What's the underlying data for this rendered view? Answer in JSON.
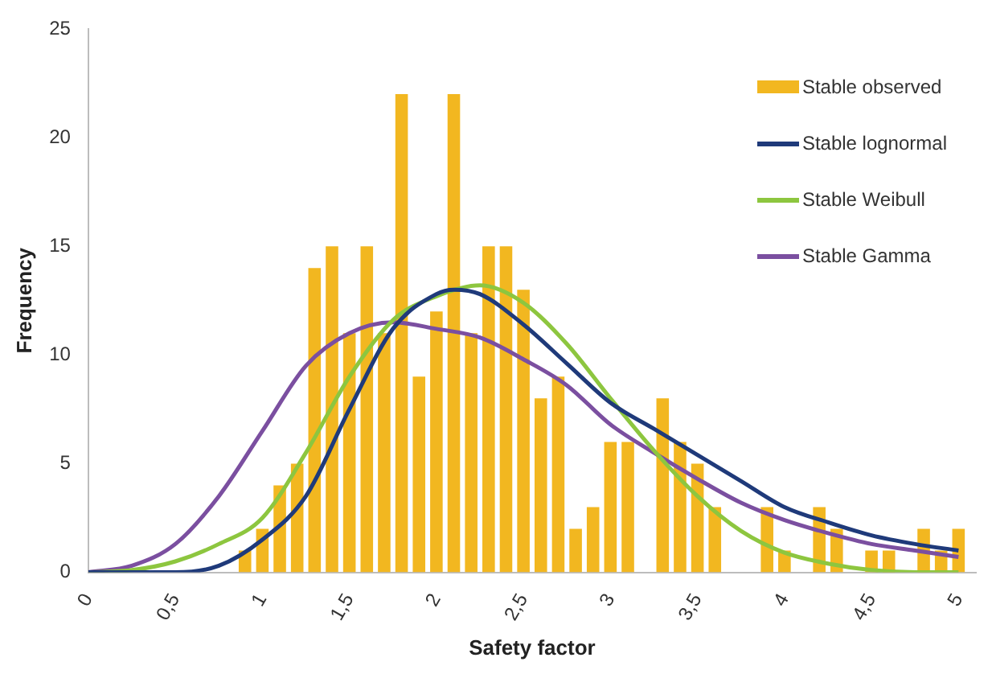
{
  "chart_data": {
    "type": "histogram",
    "xlabel": "Safety factor",
    "ylabel": "Frequency",
    "legend": "top right",
    "grid": false,
    "xlim": [
      0,
      5.1
    ],
    "xticks": [
      0,
      {
        "value": 0.5,
        "label": "0,5"
      },
      1,
      {
        "value": 1.5,
        "label": "1,5"
      },
      2,
      {
        "value": 2.5,
        "label": "2,5"
      },
      3,
      {
        "value": 3.5,
        "label": "3,5"
      },
      4,
      {
        "value": 4.5,
        "label": "4,5"
      },
      5
    ],
    "ylim": [
      0,
      25
    ],
    "yticks": [
      0,
      5,
      10,
      15,
      20,
      25
    ],
    "series": [
      {
        "name": "Stable observed",
        "color": "#f2b720",
        "bins": [
          0.85,
          0.95,
          1.05,
          1.15,
          1.25,
          1.35,
          1.45,
          1.55,
          1.65,
          1.75,
          1.85,
          1.95,
          2.05,
          2.15,
          2.25,
          2.35,
          2.45,
          2.55,
          2.65,
          2.75,
          2.85,
          2.95,
          3.05,
          3.15,
          3.25,
          3.35,
          3.45,
          3.55,
          3.65,
          3.75,
          3.85,
          3.95,
          4.05,
          4.15,
          4.25,
          4.35,
          4.45,
          4.55,
          4.65,
          4.75,
          4.85,
          4.95,
          5.05
        ],
        "values": [
          1,
          2,
          4,
          5,
          14,
          15,
          11,
          15,
          11,
          22,
          9,
          12,
          22,
          11,
          15,
          15,
          13,
          8,
          9,
          2,
          3,
          6,
          6,
          0,
          8,
          6,
          5,
          3,
          0,
          0,
          3,
          1,
          0,
          3,
          2,
          0,
          1,
          1,
          0,
          2,
          1,
          2
        ]
      },
      {
        "name": "Stable lognormal",
        "type": "line",
        "color": "#1f3a7a",
        "x": [
          0,
          0.25,
          0.5,
          0.75,
          1,
          1.25,
          1.5,
          1.75,
          2,
          2.1,
          2.25,
          2.5,
          2.75,
          3,
          3.25,
          3.5,
          3.75,
          4,
          4.25,
          4.5,
          4.75,
          5
        ],
        "values": [
          0,
          0,
          0,
          0.3,
          1.5,
          3.5,
          7.5,
          11.2,
          12.8,
          13,
          12.8,
          11.4,
          9.6,
          7.8,
          6.6,
          5.4,
          4.2,
          3,
          2.3,
          1.7,
          1.3,
          1
        ]
      },
      {
        "name": "Stable Weibull",
        "type": "line",
        "color": "#8dc63f",
        "x": [
          0,
          0.25,
          0.5,
          0.75,
          1,
          1.25,
          1.5,
          1.75,
          2,
          2.25,
          2.5,
          2.75,
          3,
          3.25,
          3.5,
          3.75,
          4,
          4.25,
          4.5,
          4.75,
          5
        ],
        "values": [
          0,
          0.1,
          0.5,
          1.3,
          2.5,
          5.5,
          9,
          11.6,
          12.7,
          13.2,
          12.4,
          10.5,
          8,
          5.6,
          3.5,
          1.9,
          0.9,
          0.4,
          0.1,
          0,
          0
        ]
      },
      {
        "name": "Stable Gamma",
        "type": "line",
        "color": "#7b4fa0",
        "x": [
          0,
          0.25,
          0.5,
          0.75,
          1,
          1.25,
          1.5,
          1.75,
          2,
          2.25,
          2.5,
          2.75,
          3,
          3.25,
          3.5,
          3.75,
          4,
          4.25,
          4.5,
          4.75,
          5
        ],
        "values": [
          0,
          0.3,
          1.3,
          3.5,
          6.5,
          9.5,
          11,
          11.5,
          11.2,
          10.8,
          9.8,
          8.6,
          6.8,
          5.5,
          4.3,
          3.2,
          2.4,
          1.8,
          1.3,
          1,
          0.7
        ]
      }
    ]
  }
}
